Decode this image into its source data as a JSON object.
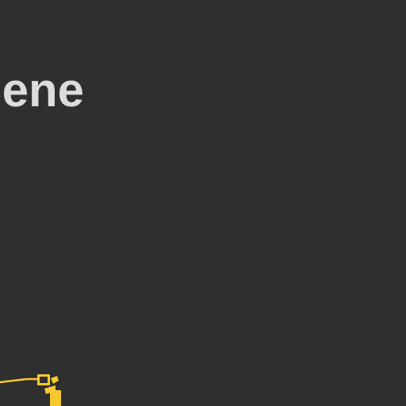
{
  "page": {
    "background_color": "#2f2f2f",
    "heading_text": "gene",
    "heading_color": "#dcdcdc"
  },
  "annotation": {
    "icon": "pencil-stroke-icon",
    "color": "#f7c82f"
  }
}
